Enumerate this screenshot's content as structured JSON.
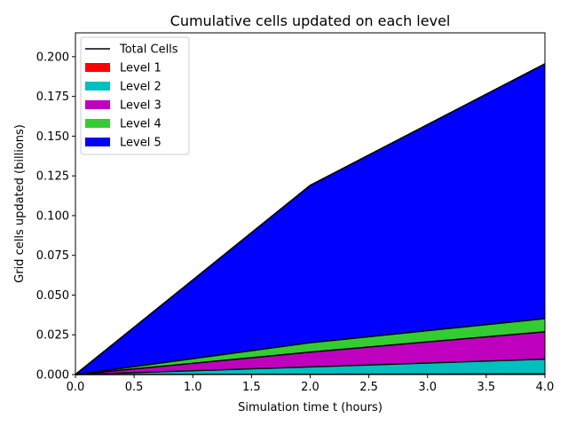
{
  "chart_data": {
    "type": "area",
    "stacked": true,
    "title": "Cumulative cells updated on each level",
    "xlabel": "Simulation time t (hours)",
    "ylabel": "Grid cells updated (billions)",
    "xlim": [
      0.0,
      4.0
    ],
    "ylim": [
      0.0,
      0.215
    ],
    "x": [
      0.0,
      2.0,
      4.0
    ],
    "xticks": [
      "0.0",
      "0.5",
      "1.0",
      "1.5",
      "2.0",
      "2.5",
      "3.0",
      "3.5",
      "4.0"
    ],
    "xtick_values": [
      0.0,
      0.5,
      1.0,
      1.5,
      2.0,
      2.5,
      3.0,
      3.5,
      4.0
    ],
    "yticks": [
      "0.000",
      "0.025",
      "0.050",
      "0.075",
      "0.100",
      "0.125",
      "0.150",
      "0.175",
      "0.200"
    ],
    "ytick_values": [
      0.0,
      0.025,
      0.05,
      0.075,
      0.1,
      0.125,
      0.15,
      0.175,
      0.2
    ],
    "grid": false,
    "legend_position": "top-left",
    "total_line": {
      "name": "Total Cells",
      "color": "#000000",
      "values": [
        0.0,
        0.119,
        0.1955
      ]
    },
    "series": [
      {
        "name": "Level 1",
        "color": "#ff0000",
        "values": [
          0.0,
          0.0002,
          0.0004
        ]
      },
      {
        "name": "Level 2",
        "color": "#00bfbf",
        "values": [
          0.0,
          0.0046,
          0.0093
        ]
      },
      {
        "name": "Level 3",
        "color": "#bf00bf",
        "values": [
          0.0,
          0.0093,
          0.0172
        ]
      },
      {
        "name": "Level 4",
        "color": "#33cc33",
        "values": [
          0.0,
          0.0059,
          0.0083
        ]
      },
      {
        "name": "Level 5",
        "color": "#0000ff",
        "values": [
          0.0,
          0.099,
          0.1603
        ]
      }
    ]
  }
}
